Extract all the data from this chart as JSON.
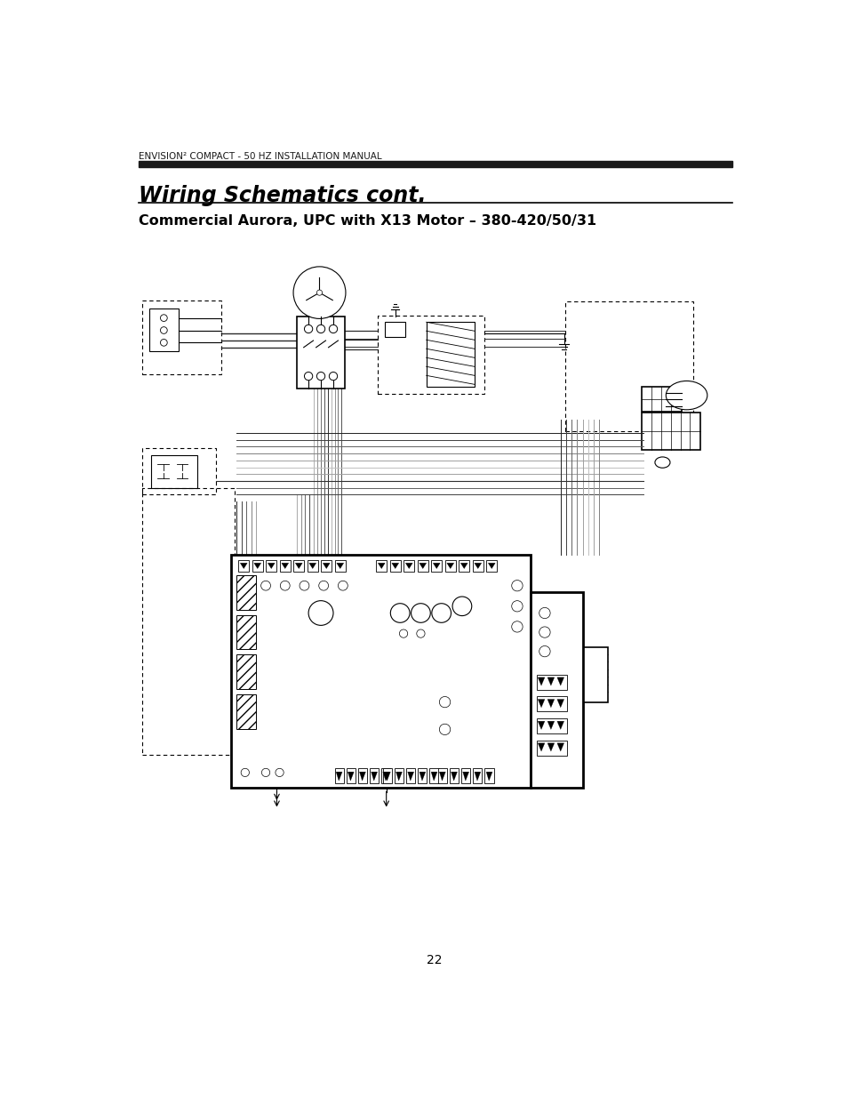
{
  "page_bg": "#ffffff",
  "header_text": "ENVISION² COMPACT - 50 HZ INSTALLATION MANUAL",
  "header_bar_color": "#1a1a1a",
  "title": "Wiring Schematics cont.",
  "subtitle": "Commercial Aurora, UPC with X13 Motor – 380-420/50/31",
  "page_number": "22",
  "wire_color": "#808080",
  "dark_wire_color": "#2a2a2a",
  "line_color": "#000000"
}
